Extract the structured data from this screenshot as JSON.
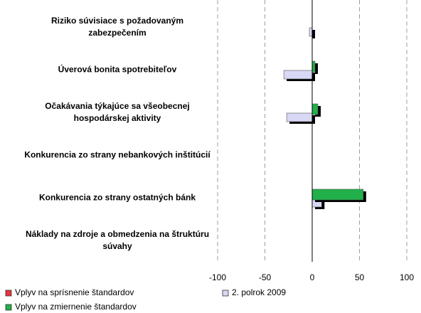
{
  "chart_data": {
    "type": "hbar",
    "categories": [
      "Riziko súvisiace s požadovaným zabezpečením",
      "Úverová bonita spotrebiteľov",
      "Očakávania týkajúce sa všeobecnej hospodárskej aktivity",
      "Konkurencia zo strany nebankových inštitúcií",
      "Konkurencia zo strany ostatných bánk",
      "Náklady na zdroje a obmedzenia na štruktúru súvahy"
    ],
    "series": [
      {
        "name": "Vplyv na sprísnenie štandardov",
        "color": "#e8343c",
        "values": [
          null,
          null,
          null,
          null,
          null,
          null
        ]
      },
      {
        "name": "2. polrok 2009",
        "color": "#d8d8f4",
        "values": [
          -3,
          -30,
          -27,
          0,
          10,
          0
        ]
      },
      {
        "name": "Vplyv na zmiernenie štandardov",
        "color": "#22b04a",
        "values": [
          0,
          3,
          6,
          0,
          54,
          0
        ]
      }
    ],
    "xlim": [
      -100,
      100
    ],
    "xticks": [
      -100,
      -50,
      0,
      50,
      100
    ],
    "grid": true
  }
}
